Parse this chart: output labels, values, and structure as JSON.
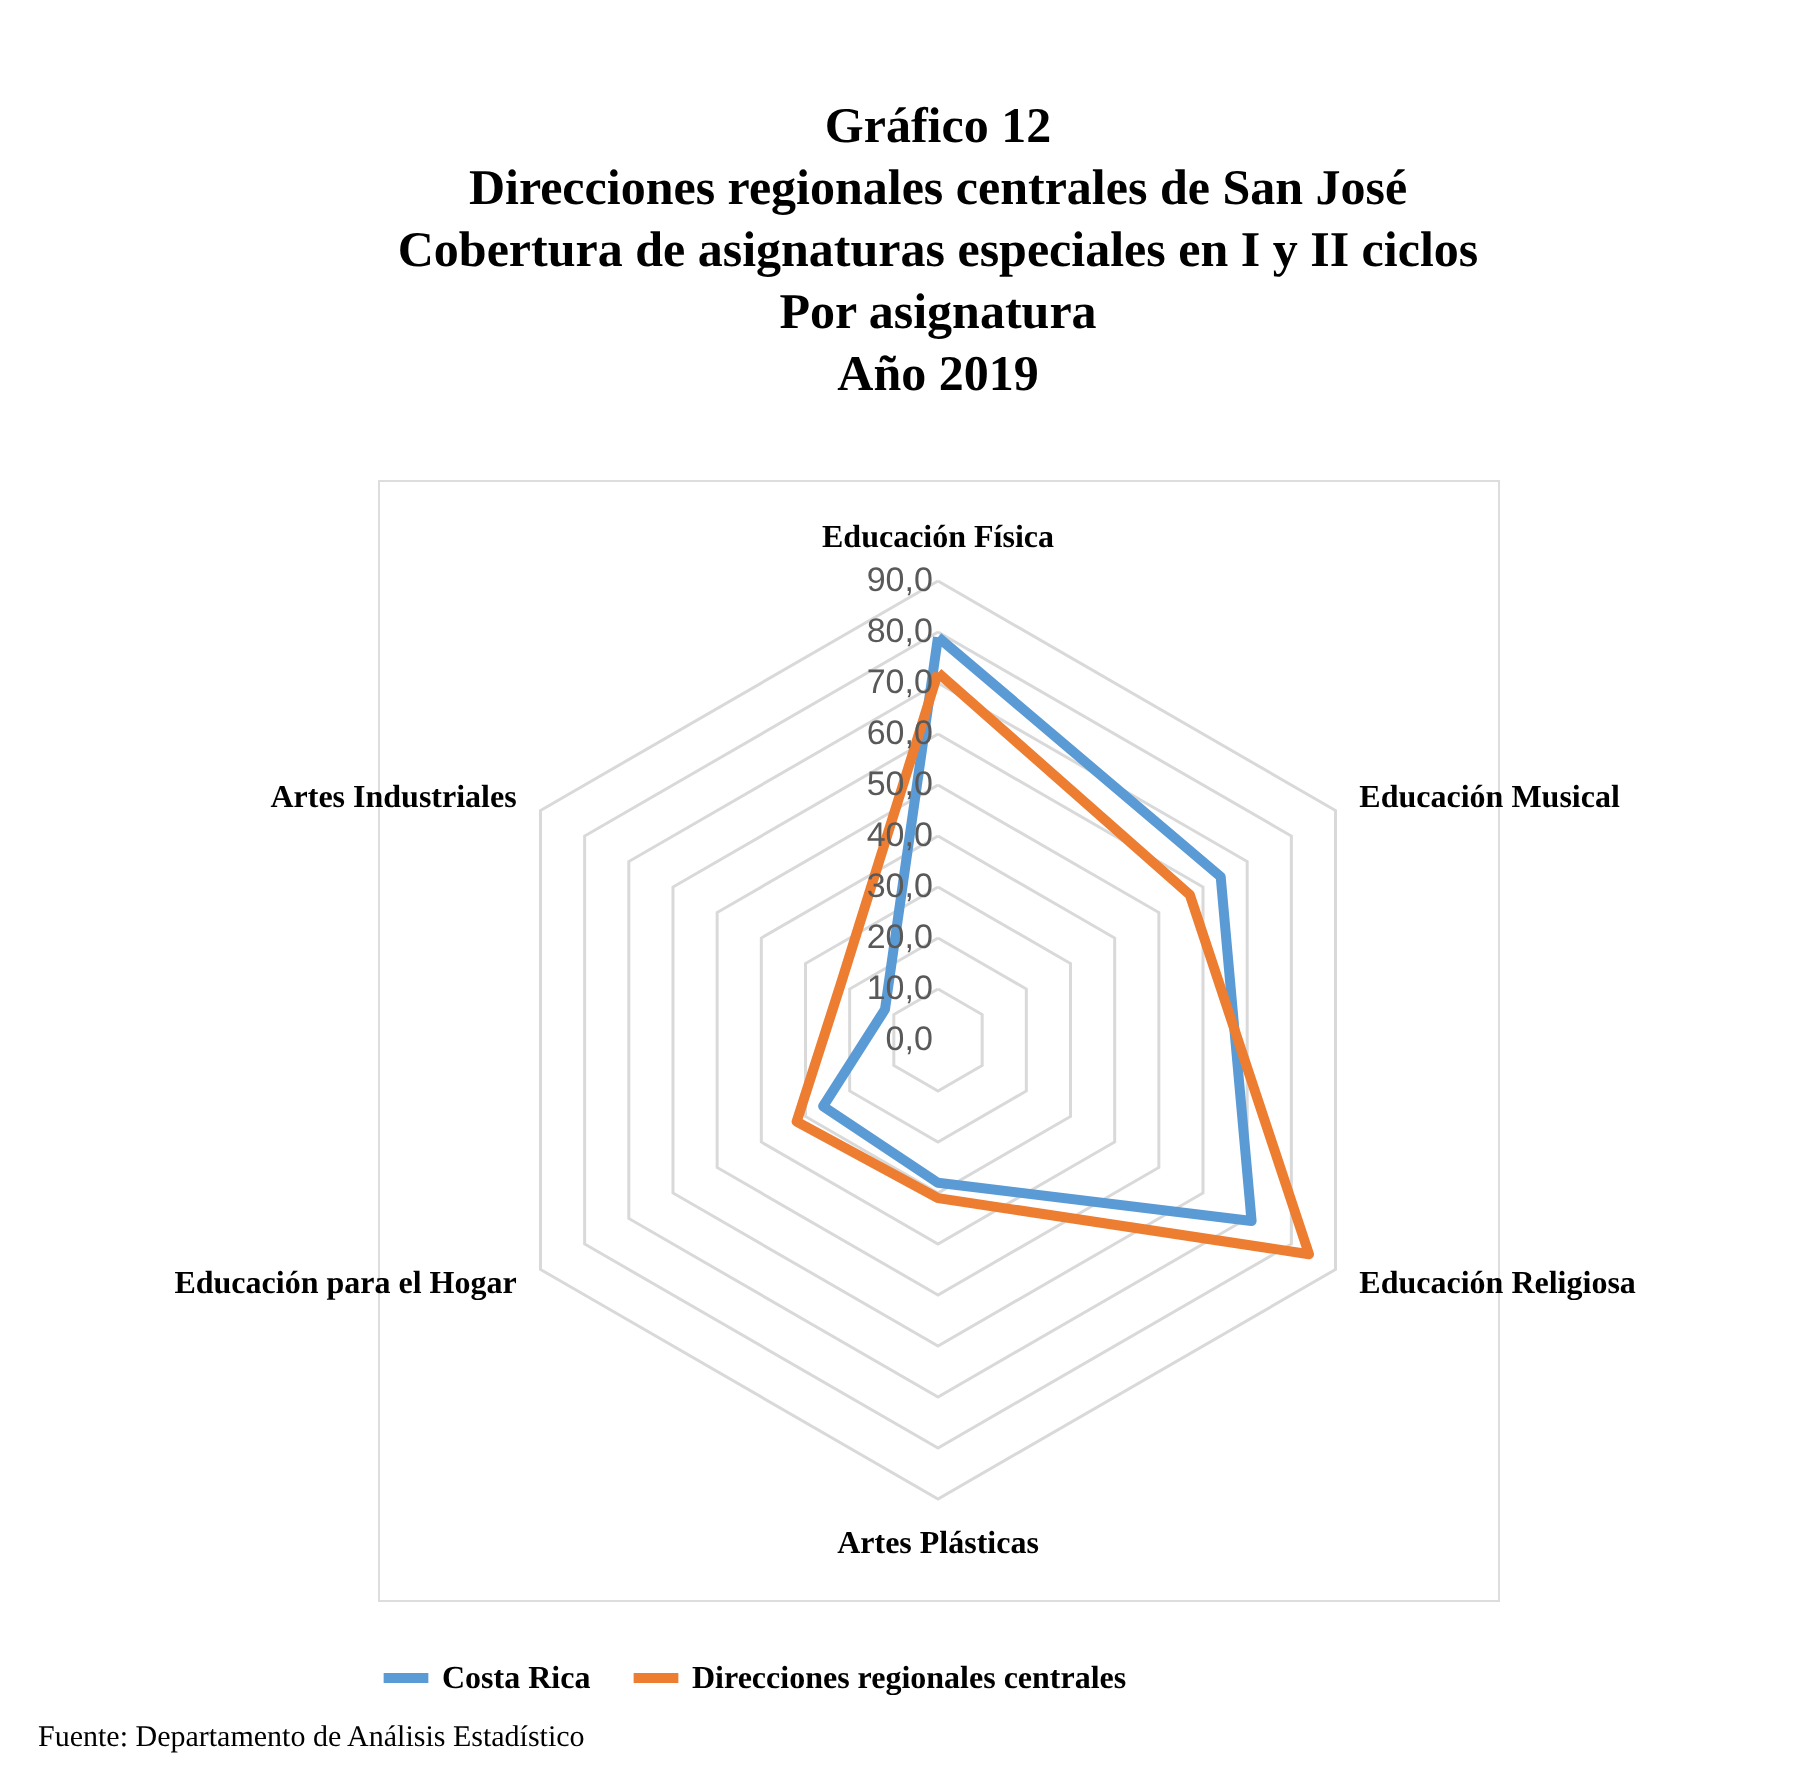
{
  "chart_data": {
    "type": "radar",
    "title": "Gráfico 12\nDirecciones regionales centrales de San José\nCobertura  de asignaturas especiales en I y II ciclos\nPor asignatura\nAño 2019",
    "categories": [
      "Educación Física",
      "Educación Musical",
      "Educación Religiosa",
      "Artes Plásticas",
      "Educación para el Hogar",
      "Artes Industriales"
    ],
    "series": [
      {
        "name": "Costa Rica",
        "color": "#5b9bd5",
        "values": [
          79,
          64,
          71,
          28,
          26,
          12
        ]
      },
      {
        "name": "Direcciones regionales centrales",
        "color": "#ed7d31",
        "values": [
          72,
          57,
          84,
          31,
          32,
          22
        ]
      }
    ],
    "ylim": [
      0,
      90
    ],
    "yticks": [
      {
        "value": 0,
        "label": "0,0"
      },
      {
        "value": 10,
        "label": "10,0"
      },
      {
        "value": 20,
        "label": "20,0"
      },
      {
        "value": 30,
        "label": "30,0"
      },
      {
        "value": 40,
        "label": "40,0"
      },
      {
        "value": 50,
        "label": "50,0"
      },
      {
        "value": 60,
        "label": "60,0"
      },
      {
        "value": 70,
        "label": "70,0"
      },
      {
        "value": 80,
        "label": "80,0"
      },
      {
        "value": 90,
        "label": "90,0"
      }
    ],
    "grid": true,
    "legend": "bottom",
    "annotations": [
      "Fuente: Departamento de Análisis Estadístico"
    ]
  }
}
